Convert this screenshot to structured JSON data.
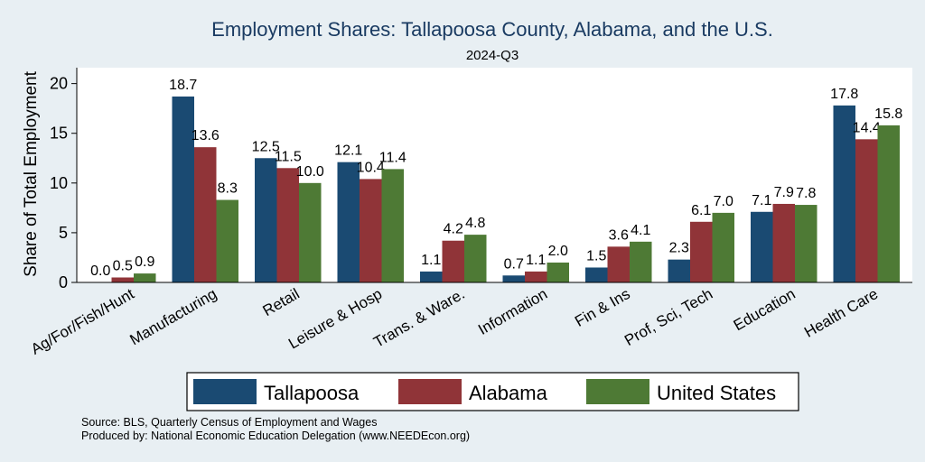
{
  "colors": {
    "background": "#e8eff3",
    "plot_background": "#ffffff",
    "title": "#1a3b62",
    "tallapoosa": "#1a4a72",
    "alabama": "#903438",
    "united_states": "#4e7a35"
  },
  "notes": {
    "source": "Source: BLS, Quarterly Census of Employment and Wages",
    "produced_by": "Produced by: National Economic Education Delegation (www.NEEDEcon.org)"
  },
  "chart_data": {
    "type": "bar",
    "title": "Employment Shares: Tallapoosa County, Alabama, and the U.S.",
    "subtitle": "2024-Q3",
    "xlabel": "",
    "ylabel": "Share of Total Employment",
    "ylim": [
      0,
      21.6
    ],
    "yticks": [
      0,
      5,
      10,
      15,
      20
    ],
    "grid": false,
    "legend_position": "bottom",
    "categories": [
      "Ag/For/Fish/Hunt",
      "Manufacturing",
      "Retail",
      "Leisure & Hosp",
      "Trans. & Ware.",
      "Information",
      "Fin & Ins",
      "Prof, Sci, Tech",
      "Education",
      "Health Care"
    ],
    "series": [
      {
        "name": "Tallapoosa",
        "color": "#1a4a72",
        "values": [
          0.0,
          18.7,
          12.5,
          12.1,
          1.1,
          0.7,
          1.5,
          2.3,
          7.1,
          17.8
        ],
        "labels": [
          "0.0",
          "18.7",
          "12.5",
          "12.1",
          "1.1",
          "0.7",
          "1.5",
          "2.3",
          "7.1",
          "17.8"
        ]
      },
      {
        "name": "Alabama",
        "color": "#903438",
        "values": [
          0.5,
          13.6,
          11.5,
          10.4,
          4.2,
          1.1,
          3.6,
          6.1,
          7.9,
          14.4
        ],
        "labels": [
          "0.5",
          "13.6",
          "11.5",
          "10.4",
          "4.2",
          "1.1",
          "3.6",
          "6.1",
          "7.9",
          "14.4"
        ]
      },
      {
        "name": "United States",
        "color": "#4e7a35",
        "values": [
          0.9,
          8.3,
          10.0,
          11.4,
          4.8,
          2.0,
          4.1,
          7.0,
          7.8,
          15.8
        ],
        "labels": [
          "0.9",
          "8.3",
          "10.0",
          "11.4",
          "4.8",
          "2.0",
          "4.1",
          "7.0",
          "7.8",
          "15.8"
        ]
      }
    ]
  }
}
